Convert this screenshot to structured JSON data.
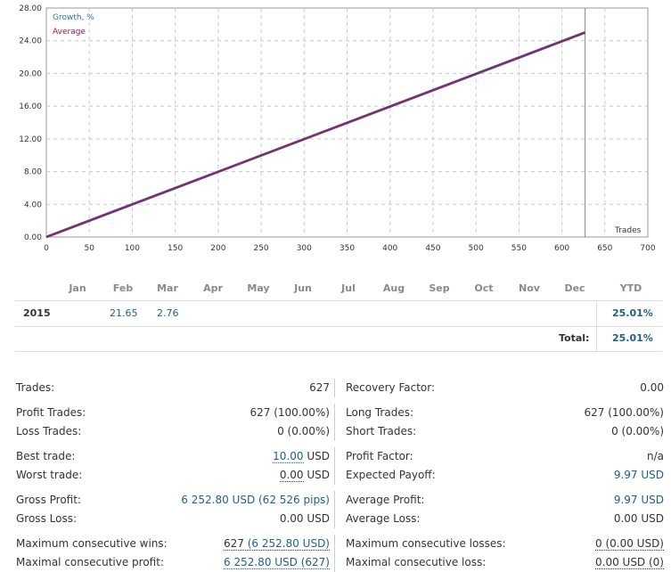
{
  "chart_data": {
    "type": "line",
    "legend": [
      "Growth, %",
      "Average"
    ],
    "legend_placement": "top-left",
    "colors": {
      "growth": "#2f6fb5",
      "average": "#b0134a"
    },
    "xlabel": "Trades",
    "ylabel": "",
    "xlim": [
      0,
      700
    ],
    "ylim": [
      0,
      28
    ],
    "x_ticks": [
      "0",
      "50",
      "100",
      "150",
      "200",
      "250",
      "300",
      "350",
      "400",
      "450",
      "500",
      "550",
      "600",
      "650",
      "700"
    ],
    "y_ticks": [
      "0.00",
      "4.00",
      "8.00",
      "12.00",
      "16.00",
      "20.00",
      "24.00",
      "28.00"
    ],
    "grid": true,
    "marker_line_x": 627,
    "series": [
      {
        "name": "Growth, %",
        "x": [
          0,
          627
        ],
        "y": [
          0,
          25.01
        ]
      },
      {
        "name": "Average",
        "x": [
          0,
          627
        ],
        "y": [
          0,
          25.01
        ]
      }
    ]
  },
  "monthly": {
    "months": [
      "Jan",
      "Feb",
      "Mar",
      "Apr",
      "May",
      "Jun",
      "Jul",
      "Aug",
      "Sep",
      "Oct",
      "Nov",
      "Dec"
    ],
    "ytd_label": "YTD",
    "rows": [
      {
        "year": "2015",
        "values": [
          "",
          "21.65",
          "2.76",
          "",
          "",
          "",
          "",
          "",
          "",
          "",
          "",
          ""
        ],
        "ytd": "25.01%"
      }
    ],
    "total_label": "Total:",
    "total_value": "25.01%"
  },
  "stats": {
    "trades": {
      "label": "Trades:",
      "value": "627"
    },
    "recovery_factor": {
      "label": "Recovery Factor:",
      "value": "0.00"
    },
    "profit_trades": {
      "label": "Profit Trades:",
      "value": "627 (100.00%)"
    },
    "long_trades": {
      "label": "Long Trades:",
      "value": "627 (100.00%)"
    },
    "loss_trades": {
      "label": "Loss Trades:",
      "value": "0 (0.00%)"
    },
    "short_trades": {
      "label": "Short Trades:",
      "value": "0 (0.00%)"
    },
    "best_trade": {
      "label": "Best trade:",
      "value": "10.00",
      "unit": "USD"
    },
    "profit_factor": {
      "label": "Profit Factor:",
      "value": "n/a"
    },
    "worst_trade": {
      "label": "Worst trade:",
      "value": "0.00",
      "unit": "USD"
    },
    "expected_payoff": {
      "label": "Expected Payoff:",
      "value": "9.97 USD"
    },
    "gross_profit": {
      "label": "Gross Profit:",
      "value": "6 252.80 USD (62 526 pips)"
    },
    "average_profit": {
      "label": "Average Profit:",
      "value": "9.97 USD"
    },
    "gross_loss": {
      "label": "Gross Loss:",
      "value": "0.00 USD"
    },
    "average_loss": {
      "label": "Average Loss:",
      "value": "0.00 USD"
    },
    "max_consec_wins": {
      "label": "Maximum consecutive wins:",
      "count": "627",
      "amount": "(6 252.80 USD)"
    },
    "max_consec_losses": {
      "label": "Maximum consecutive losses:",
      "value": "0 (0.00 USD)"
    },
    "maximal_consec_profit": {
      "label": "Maximal consecutive profit:",
      "value": "6 252.80 USD (627)"
    },
    "maximal_consec_loss": {
      "label": "Maximal consecutive loss:",
      "value": "0.00 USD (0)"
    }
  }
}
